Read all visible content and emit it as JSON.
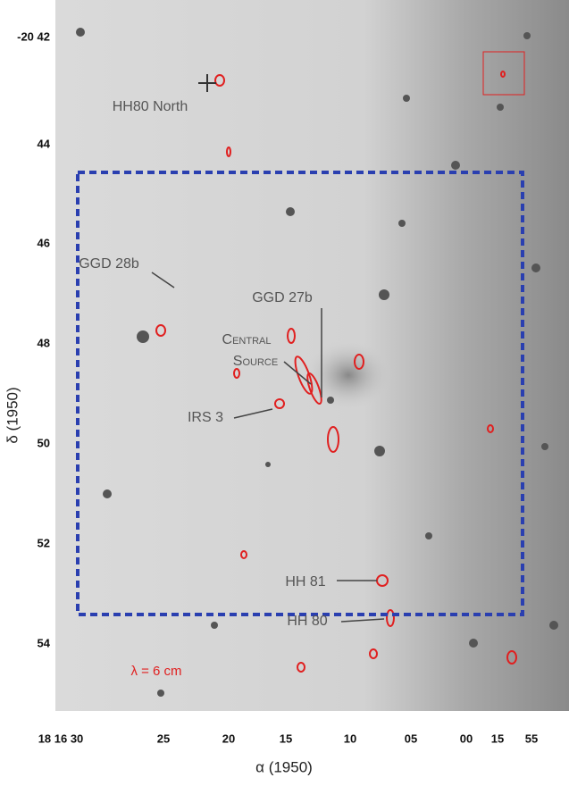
{
  "axes": {
    "y_label": "δ (1950)",
    "y_ticks": [
      "-20 42",
      "44",
      "46",
      "48",
      "50",
      "52",
      "54"
    ],
    "x_label": "α (1950)",
    "x_ticks": [
      "18 16 30",
      "25",
      "20",
      "15",
      "10",
      "05",
      "00",
      "15",
      "55"
    ]
  },
  "annotations": [
    "HH80 North",
    "GGD 28b",
    "GGD 27b",
    "Central",
    "Source",
    "IRS 3",
    "HH 81",
    "HH 80",
    "λ = 6 cm"
  ]
}
